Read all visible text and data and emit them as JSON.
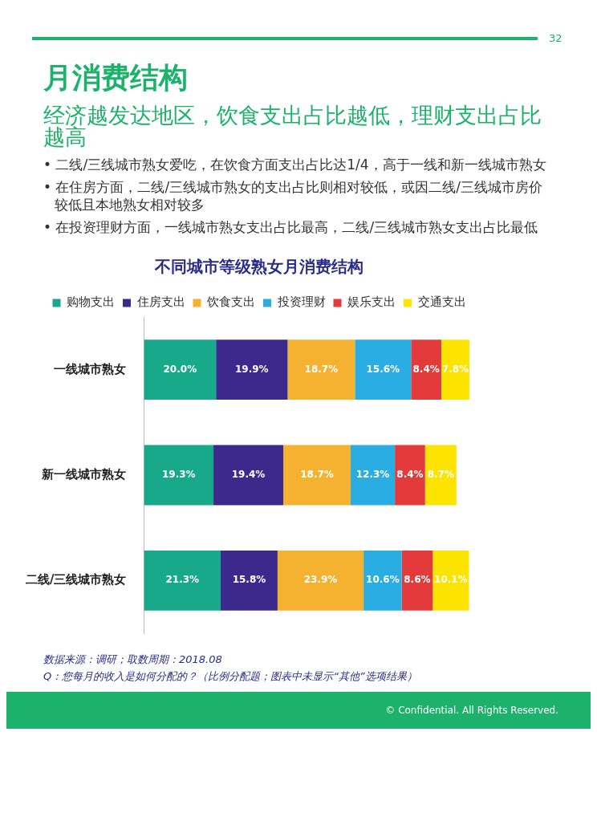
{
  "chart_data": {
    "type": "bar",
    "orientation": "horizontal",
    "stacked": true,
    "title": "不同城市等级熟女月消费结构",
    "categories": [
      "一线城市熟女",
      "新一线城市熟女",
      "二线/三线城市熟女"
    ],
    "series": [
      {
        "name": "购物支出",
        "color": "#17a98a",
        "values": [
          20.0,
          19.3,
          21.3
        ],
        "value_labels": [
          "20.0%",
          "19.3%",
          "21.3%"
        ]
      },
      {
        "name": "住房支出",
        "color": "#3b2a8c",
        "values": [
          19.9,
          19.4,
          15.8
        ],
        "value_labels": [
          "19.9%",
          "19.4%",
          "15.8%"
        ]
      },
      {
        "name": "饮食支出",
        "color": "#f5b231",
        "values": [
          18.7,
          18.7,
          23.9
        ],
        "value_labels": [
          "18.7%",
          "18.7%",
          "23.9%"
        ]
      },
      {
        "name": "投资理财",
        "color": "#29ade2",
        "values": [
          15.6,
          12.3,
          10.6
        ],
        "value_labels": [
          "15.6%",
          "12.3%",
          "10.6%"
        ]
      },
      {
        "name": "娱乐支出",
        "color": "#e33b3c",
        "values": [
          8.4,
          8.4,
          8.6
        ],
        "value_labels": [
          "8.4%",
          "8.4%",
          "8.6%"
        ]
      },
      {
        "name": "交通支出",
        "color": "#fde300",
        "values": [
          7.8,
          8.7,
          10.1
        ],
        "value_labels": [
          "7.8%",
          "8.7%",
          "10.1%"
        ]
      }
    ],
    "legend": "top",
    "annotations": [
      "月消费结构",
      "经济越发达地区，饮食支出占比越低，理财支出占比越高",
      "• 二线/三线城市熟女爱吃，在饮食方面支出占比达1/4，高于一线和新一线城市熟女",
      "• 在住房方面，二线/三线城市熟女的支出占比则相对较低，或因二线/三线城市房价较低且本地熟女相对较多",
      "• 在投资理财方面，一线城市熟女支出占比最高，二线/三线城市熟女支出占比最低",
      "数据来源：调研；取数周期：2018.08",
      "Q：您每月的收入是如何分配的？（比例分配题；图表中未显示“其他”选项结果）",
      "32",
      "© Confidential. All Rights Reserved."
    ]
  }
}
